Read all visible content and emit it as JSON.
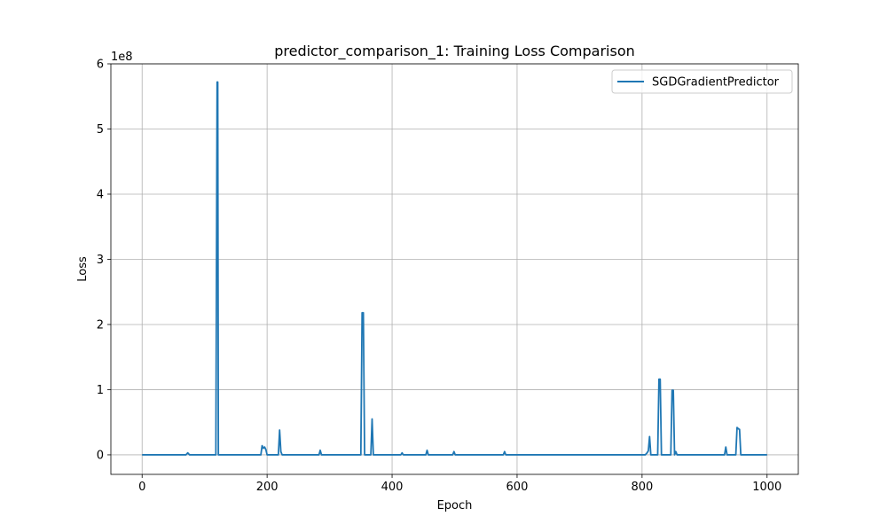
{
  "chart_data": {
    "type": "line",
    "title": "predictor_comparison_1: Training Loss Comparison",
    "xlabel": "Epoch",
    "ylabel": "Loss",
    "y_offset_label": "1e8",
    "xlim": [
      -50,
      1050
    ],
    "ylim": [
      -0.3,
      6.0
    ],
    "y_unit_multiplier": 100000000,
    "xticks": [
      0,
      200,
      400,
      600,
      800,
      1000
    ],
    "yticks": [
      0,
      1,
      2,
      3,
      4,
      5,
      6
    ],
    "grid": true,
    "legend_position": "upper-right",
    "line_color": "#1f77b4",
    "series": [
      {
        "name": "SGDGradientPredictor",
        "x": [
          0,
          70,
          73,
          76,
          118,
          120,
          121,
          122,
          124,
          190,
          192,
          194,
          196,
          198,
          200,
          218,
          220,
          222,
          224,
          283,
          285,
          287,
          300,
          350,
          352,
          353,
          354,
          356,
          366,
          368,
          370,
          372,
          414,
          416,
          418,
          430,
          454,
          456,
          458,
          490,
          497,
          499,
          501,
          510,
          578,
          580,
          582,
          805,
          808,
          810,
          812,
          814,
          825,
          827,
          829,
          831,
          846,
          848,
          850,
          852,
          854,
          856,
          932,
          934,
          936,
          950,
          952,
          954,
          956,
          958,
          1000
        ],
        "y": [
          0,
          0,
          0.03,
          0,
          0,
          5.72,
          5.72,
          0,
          0,
          0,
          0.14,
          0.1,
          0.12,
          0.08,
          0,
          0,
          0.38,
          0.05,
          0,
          0,
          0.07,
          0,
          0,
          0,
          2.18,
          2.18,
          2.18,
          0,
          0,
          0.55,
          0,
          0,
          0,
          0.03,
          0,
          0,
          0,
          0.07,
          0,
          0,
          0,
          0.05,
          0,
          0,
          0,
          0.05,
          0,
          0,
          0.03,
          0.06,
          0.28,
          0,
          0,
          1.16,
          1.16,
          0,
          0,
          0.99,
          0.99,
          0,
          0.05,
          0,
          0,
          0.12,
          0,
          0,
          0.42,
          0.4,
          0.39,
          0,
          0
        ]
      }
    ]
  }
}
